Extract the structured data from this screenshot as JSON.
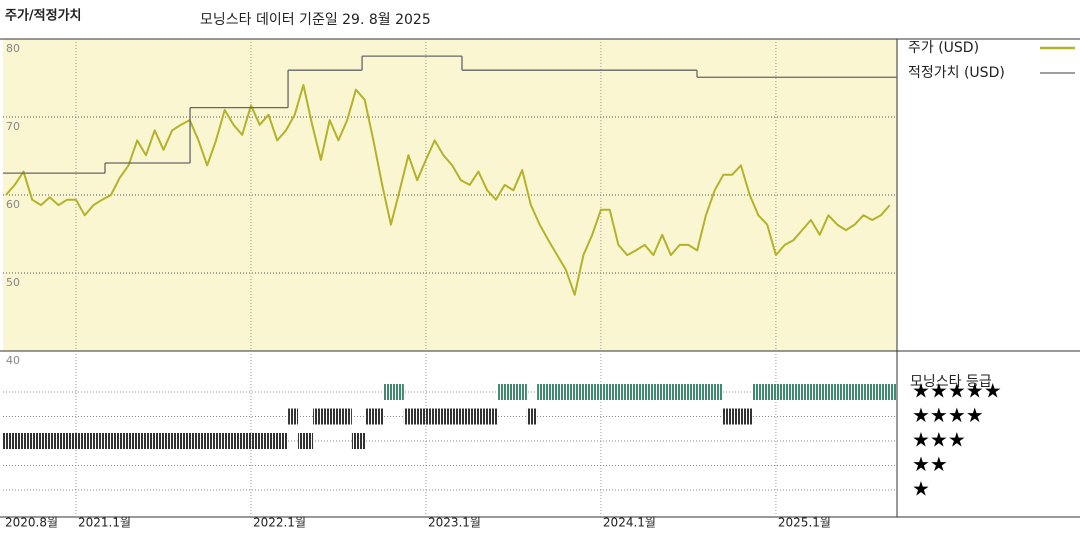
{
  "chart_data": {
    "type": "line",
    "title": "주가/적정가치",
    "subtitle": "모닝스타 데이터 기준일 29. 8월 2025",
    "legend": "right",
    "grid": true,
    "background": "#faf6d2",
    "xlim": [
      2020.583,
      2025.692
    ],
    "xticks": [
      {
        "value": 2020.583,
        "label": "2020.8월"
      },
      {
        "value": 2021,
        "label": "2021.1월"
      },
      {
        "value": 2022,
        "label": "2022.1월"
      },
      {
        "value": 2023,
        "label": "2023.1월"
      },
      {
        "value": 2024,
        "label": "2024.1월"
      },
      {
        "value": 2025,
        "label": "2025.1월"
      }
    ],
    "ylim": [
      40,
      80
    ],
    "yticks": [
      40,
      50,
      60,
      70,
      80
    ],
    "series": [
      {
        "name": "주가 (USD)",
        "color": "#b3b22a",
        "x": [
          2020.6,
          2020.65,
          2020.7,
          2020.75,
          2020.8,
          2020.85,
          2020.9,
          2020.95,
          2021.0,
          2021.05,
          2021.1,
          2021.15,
          2021.2,
          2021.25,
          2021.3,
          2021.35,
          2021.4,
          2021.45,
          2021.5,
          2021.55,
          2021.6,
          2021.65,
          2021.7,
          2021.75,
          2021.8,
          2021.85,
          2021.9,
          2021.95,
          2022.0,
          2022.05,
          2022.1,
          2022.15,
          2022.2,
          2022.25,
          2022.3,
          2022.35,
          2022.4,
          2022.45,
          2022.5,
          2022.55,
          2022.6,
          2022.65,
          2022.7,
          2022.75,
          2022.8,
          2022.85,
          2022.9,
          2022.95,
          2023.0,
          2023.05,
          2023.1,
          2023.15,
          2023.2,
          2023.25,
          2023.3,
          2023.35,
          2023.4,
          2023.45,
          2023.5,
          2023.55,
          2023.6,
          2023.65,
          2023.7,
          2023.75,
          2023.8,
          2023.85,
          2023.9,
          2023.95,
          2024.0,
          2024.05,
          2024.1,
          2024.15,
          2024.2,
          2024.25,
          2024.3,
          2024.35,
          2024.4,
          2024.45,
          2024.5,
          2024.55,
          2024.6,
          2024.65,
          2024.7,
          2024.75,
          2024.8,
          2024.85,
          2024.9,
          2024.95,
          2025.0,
          2025.05,
          2025.1,
          2025.15,
          2025.2,
          2025.25,
          2025.3,
          2025.35,
          2025.4,
          2025.45,
          2025.5,
          2025.55,
          2025.6,
          2025.65
        ],
        "values": [
          60,
          61.3,
          63,
          59.4,
          58.7,
          59.7,
          58.7,
          59.4,
          59.4,
          57.4,
          58.7,
          59.4,
          60,
          62.2,
          63.8,
          67,
          65.1,
          68.3,
          65.8,
          68.3,
          69,
          69.6,
          67,
          63.8,
          67,
          70.9,
          69,
          67.7,
          71.5,
          69,
          70.3,
          67,
          68.3,
          70.3,
          74.1,
          69,
          64.5,
          69.6,
          67,
          69.6,
          73.5,
          72.2,
          67,
          61.3,
          56.2,
          60.6,
          65.1,
          61.9,
          64.5,
          67,
          65.1,
          63.8,
          61.9,
          61.3,
          63,
          60.6,
          59.4,
          61.3,
          60.6,
          63.2,
          58.7,
          56.2,
          54.2,
          52.3,
          50.4,
          47.2,
          52.3,
          54.9,
          58.1,
          58.1,
          53.6,
          52.3,
          52.9,
          53.6,
          52.3,
          54.9,
          52.3,
          53.6,
          53.6,
          52.9,
          57.4,
          60.6,
          62.6,
          62.6,
          63.8,
          60,
          57.4,
          56.2,
          52.3,
          53.6,
          54.2,
          55.5,
          56.8,
          54.9,
          57.4,
          56.2,
          55.5,
          56.2,
          57.4,
          56.8,
          57.4,
          58.7
        ]
      },
      {
        "name": "적정가치 (USD)",
        "color": "#666666",
        "step": true,
        "x": [
          2020.583,
          2021.166,
          2021.652,
          2022.212,
          2022.635,
          2023.206,
          2024.549
        ],
        "values": [
          62.8,
          64.1,
          71.2,
          76,
          77.8,
          76,
          75.1
        ]
      }
    ],
    "rating_title": "모닝스타 등급",
    "rating_labels": [
      "★",
      "★★",
      "★★★",
      "★★★★",
      "★★★★★"
    ],
    "ratings": {
      "start": [
        2020.583,
        2022.212,
        2022.269,
        2022.355,
        2022.577,
        2022.652,
        2022.755,
        2022.874,
        2023.412,
        2023.577,
        2023.635,
        2024.692,
        2024.869
      ],
      "end": [
        2022.212,
        2022.269,
        2022.355,
        2022.577,
        2022.652,
        2022.755,
        2022.874,
        2023.412,
        2023.577,
        2023.635,
        2024.692,
        2024.869,
        2025.692
      ],
      "stars": [
        3,
        4,
        3,
        4,
        3,
        4,
        5,
        4,
        5,
        4,
        5,
        4,
        5
      ],
      "colors": {
        "five": "#3f8a6c",
        "other": "#333333"
      }
    }
  }
}
